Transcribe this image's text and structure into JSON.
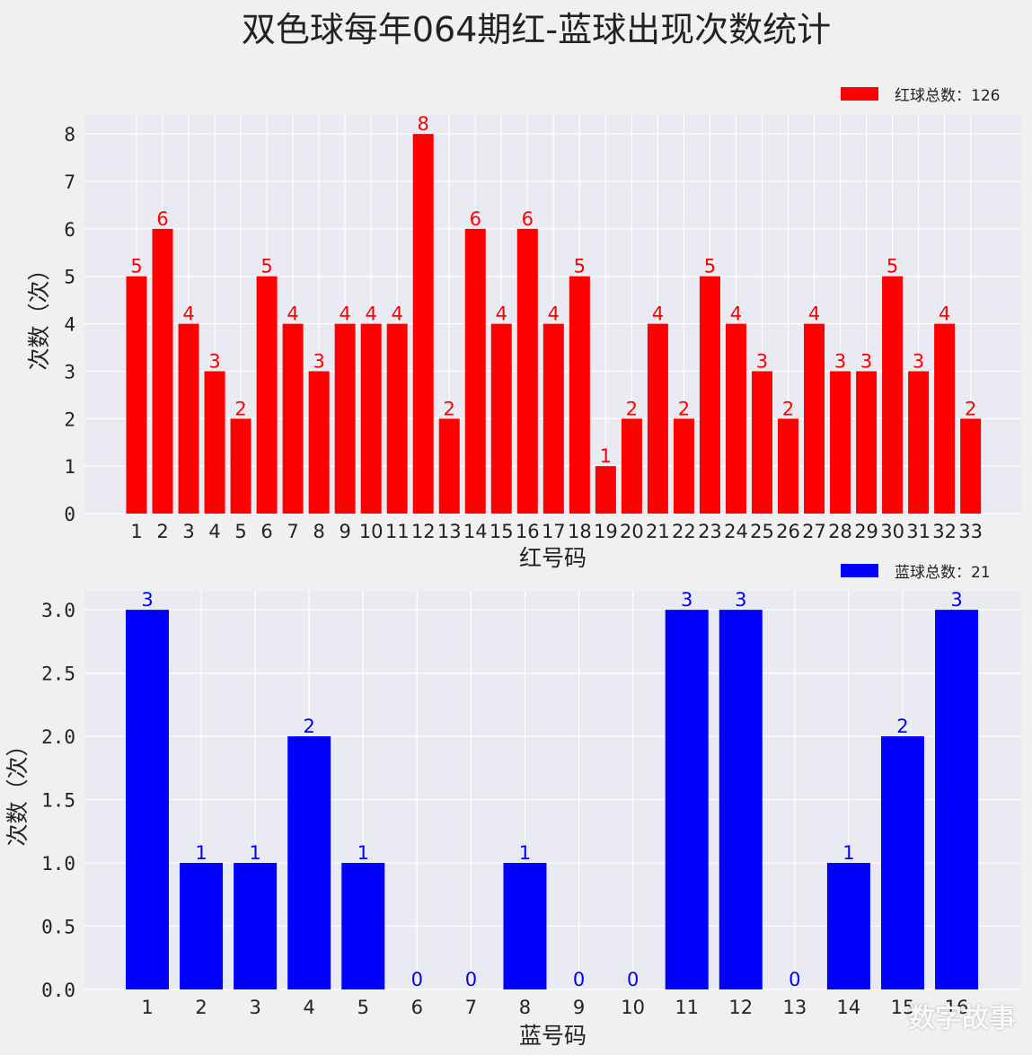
{
  "title": "双色球每年064期红-蓝球出现次数统计",
  "colors": {
    "red": "#ff0000",
    "blue": "#0000ff",
    "panel": "#eaeaf2",
    "grid": "#ffffff",
    "background": "#f0f0f0"
  },
  "watermark": "数字故事",
  "chart_data": [
    {
      "type": "bar",
      "xlabel": "红号码",
      "ylabel": "次数（次）",
      "legend": "红球总数：126",
      "legend_position": "top-right",
      "grid": true,
      "ylim": [
        0,
        8.4
      ],
      "yticks": [
        0,
        1,
        2,
        3,
        4,
        5,
        6,
        7,
        8
      ],
      "ytick_labels": [
        "0",
        "1",
        "2",
        "3",
        "4",
        "5",
        "6",
        "7",
        "8"
      ],
      "categories": [
        "1",
        "2",
        "3",
        "4",
        "5",
        "6",
        "7",
        "8",
        "9",
        "10",
        "11",
        "12",
        "13",
        "14",
        "15",
        "16",
        "17",
        "18",
        "19",
        "20",
        "21",
        "22",
        "23",
        "24",
        "25",
        "26",
        "27",
        "28",
        "29",
        "30",
        "31",
        "32",
        "33"
      ],
      "values": [
        5,
        6,
        4,
        3,
        2,
        5,
        4,
        3,
        4,
        4,
        4,
        8,
        2,
        6,
        4,
        6,
        4,
        5,
        1,
        2,
        4,
        2,
        5,
        4,
        3,
        2,
        4,
        3,
        3,
        5,
        3,
        4,
        2
      ],
      "color": "#ff0000"
    },
    {
      "type": "bar",
      "xlabel": "蓝号码",
      "ylabel": "次数（次）",
      "legend": "蓝球总数：21",
      "legend_position": "top-right",
      "grid": true,
      "ylim": [
        0,
        3.15
      ],
      "yticks": [
        0,
        0.5,
        1.0,
        1.5,
        2.0,
        2.5,
        3.0
      ],
      "ytick_labels": [
        "0.0",
        "0.5",
        "1.0",
        "1.5",
        "2.0",
        "2.5",
        "3.0"
      ],
      "categories": [
        "1",
        "2",
        "3",
        "4",
        "5",
        "6",
        "7",
        "8",
        "9",
        "10",
        "11",
        "12",
        "13",
        "14",
        "15",
        "16"
      ],
      "values": [
        3,
        1,
        1,
        2,
        1,
        0,
        0,
        1,
        0,
        0,
        3,
        3,
        0,
        1,
        2,
        3
      ],
      "color": "#0000ff"
    }
  ]
}
